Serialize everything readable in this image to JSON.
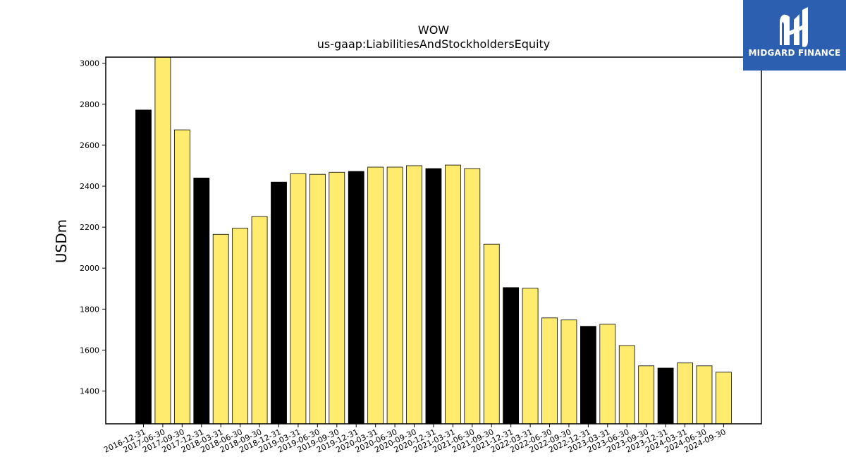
{
  "chart_data": {
    "type": "bar",
    "title": "WOW",
    "subtitle": "us-gaap:LiabilitiesAndStockholdersEquity",
    "ylabel": "USDm",
    "ylim": [
      1240,
      3030
    ],
    "yticks": [
      1400,
      1600,
      1800,
      2000,
      2200,
      2400,
      2600,
      2800,
      3000
    ],
    "categories": [
      "2016-12-31",
      "2017-06-30",
      "2017-09-30",
      "2017-12-31",
      "2018-03-31",
      "2018-06-30",
      "2018-09-30",
      "2018-12-31",
      "2019-03-31",
      "2019-06-30",
      "2019-09-30",
      "2019-12-31",
      "2020-03-31",
      "2020-06-30",
      "2020-09-30",
      "2020-12-31",
      "2021-03-31",
      "2021-06-30",
      "2021-09-30",
      "2021-12-31",
      "2022-03-31",
      "2022-06-30",
      "2022-09-30",
      "2022-12-31",
      "2023-03-31",
      "2023-06-30",
      "2023-09-30",
      "2023-12-31",
      "2024-03-31",
      "2024-06-30",
      "2024-09-30"
    ],
    "values": [
      2772,
      3060,
      2675,
      2440,
      2165,
      2195,
      2252,
      2420,
      2461,
      2458,
      2468,
      2472,
      2493,
      2493,
      2500,
      2486,
      2503,
      2486,
      2117,
      1905,
      1902,
      1757,
      1747,
      1716,
      1726,
      1622,
      1523,
      1512,
      1537,
      1523,
      1492
    ],
    "annual_flags": [
      true,
      false,
      false,
      true,
      false,
      false,
      false,
      true,
      false,
      false,
      false,
      true,
      false,
      false,
      false,
      true,
      false,
      false,
      false,
      true,
      false,
      false,
      false,
      true,
      false,
      false,
      false,
      true,
      false,
      false,
      false
    ],
    "colors": {
      "annual": "#000000",
      "quarterly": "#ffec6e",
      "edge": "#000000"
    },
    "grid": false,
    "legend": "none"
  },
  "logo": {
    "brand": "MIDGARD FINANCE",
    "icon": "midgard-m-logo-icon",
    "background": "#2d5fb0"
  }
}
